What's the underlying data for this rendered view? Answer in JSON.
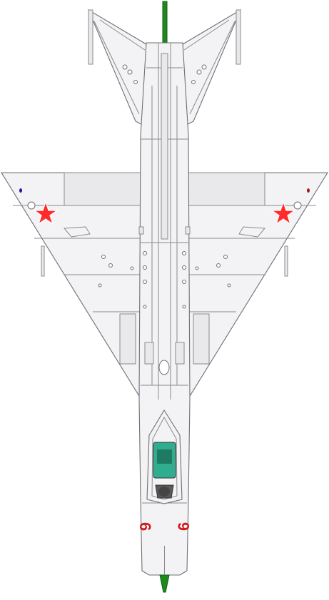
{
  "aircraft": {
    "view": "top",
    "colors": {
      "skin": "#f3f3f5",
      "outline": "#6f6f75",
      "star": "#ff2a2a",
      "numerals": "#d01c1c",
      "pitot": "#1e8a1e",
      "canopy_glass": "#2fae8f",
      "cockpit_dark": "#5a5a5a"
    },
    "markings": {
      "side_number_left": "6",
      "side_number_right": "6",
      "insignia": "red-star"
    }
  }
}
